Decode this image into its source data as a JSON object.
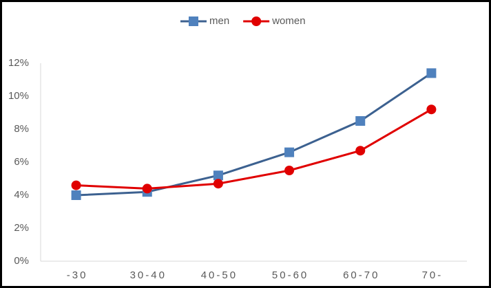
{
  "chart_data": {
    "type": "line",
    "categories": [
      "-30",
      "30-40",
      "40-50",
      "50-60",
      "60-70",
      "70-"
    ],
    "series": [
      {
        "name": "men",
        "color": "#3c6190",
        "marker_color": "#4f81bd",
        "marker": "square",
        "values": [
          4.0,
          4.2,
          5.2,
          6.6,
          8.5,
          11.4
        ]
      },
      {
        "name": "women",
        "color": "#e00000",
        "marker_color": "#e00000",
        "marker": "circle",
        "values": [
          4.6,
          4.4,
          4.7,
          5.5,
          6.7,
          9.2
        ]
      }
    ],
    "ylim": [
      0,
      12
    ],
    "yticks": [
      {
        "value": 0,
        "label": "0%"
      },
      {
        "value": 2,
        "label": "2%"
      },
      {
        "value": 4,
        "label": "4%"
      },
      {
        "value": 6,
        "label": "6%"
      },
      {
        "value": 8,
        "label": "8%"
      },
      {
        "value": 10,
        "label": "10%"
      },
      {
        "value": 12,
        "label": "12%"
      }
    ],
    "grid": false,
    "legend": "top"
  }
}
